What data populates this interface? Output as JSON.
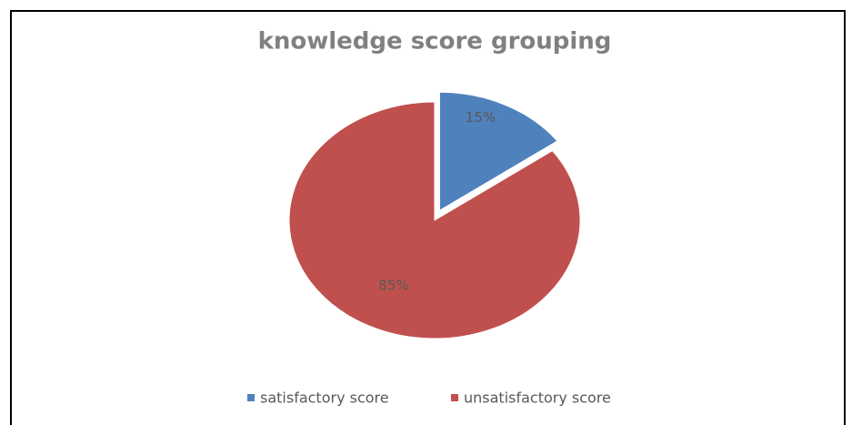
{
  "chart_data": {
    "type": "pie",
    "title": "knowledge score grouping",
    "categories": [
      "satisfactory score",
      "unsatisfactory score"
    ],
    "values": [
      15,
      85
    ],
    "value_labels": [
      "15%",
      "85%"
    ],
    "colors": [
      "#4f81bd",
      "#c0504d"
    ],
    "exploded": [
      true,
      false
    ],
    "legend": "bottom"
  }
}
